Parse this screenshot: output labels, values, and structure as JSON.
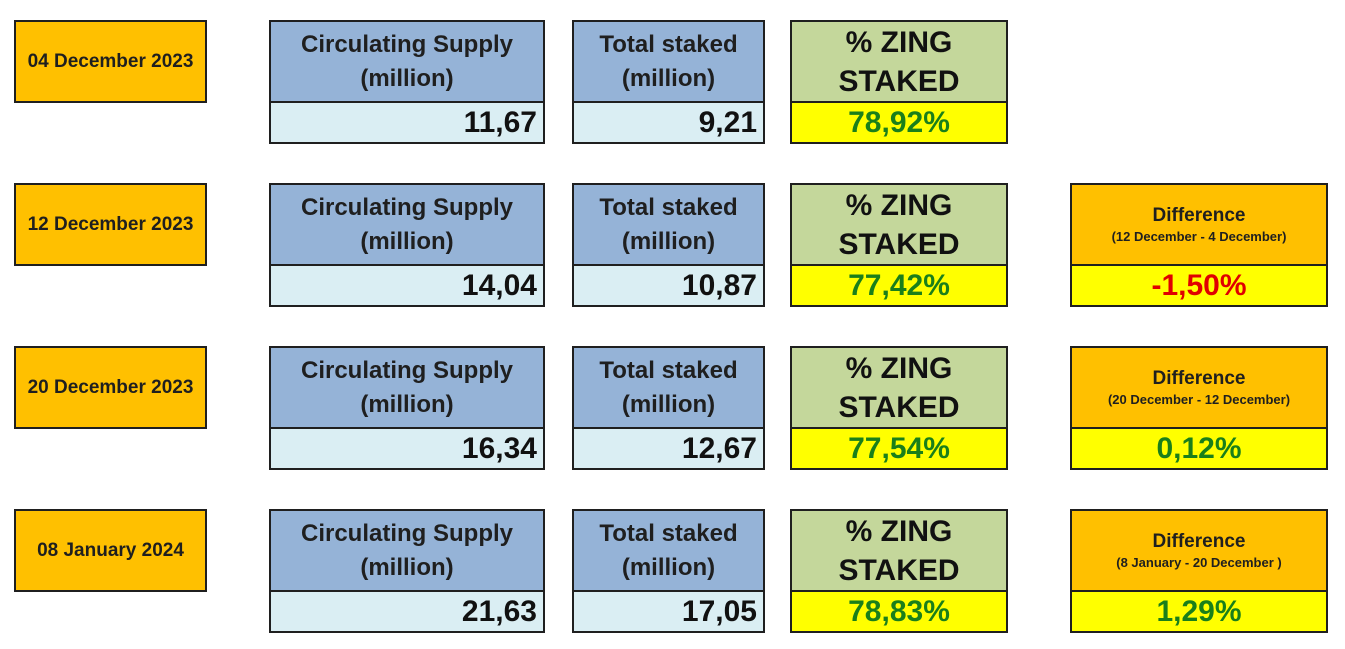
{
  "rows": [
    {
      "date": "04 December 2023",
      "supply_label_1": "Circulating Supply",
      "supply_label_2": "(million)",
      "supply": "11,67",
      "staked_label_1": "Total staked",
      "staked_label_2": "(million)",
      "staked": "9,21",
      "pct_label_1": "% ZING",
      "pct_label_2": "STAKED",
      "pct": "78,92%"
    },
    {
      "date": "12 December 2023",
      "supply_label_1": "Circulating Supply",
      "supply_label_2": "(million)",
      "supply": "14,04",
      "staked_label_1": "Total staked",
      "staked_label_2": "(million)",
      "staked": "10,87",
      "pct_label_1": "% ZING",
      "pct_label_2": "STAKED",
      "pct": "77,42%",
      "diff_label": "Difference",
      "diff_range": "(12 December - 4 December)",
      "diff": "-1,50%"
    },
    {
      "date": "20 December 2023",
      "supply_label_1": "Circulating Supply",
      "supply_label_2": "(million)",
      "supply": "16,34",
      "staked_label_1": "Total staked",
      "staked_label_2": "(million)",
      "staked": "12,67",
      "pct_label_1": "% ZING",
      "pct_label_2": "STAKED",
      "pct": "77,54%",
      "diff_label": "Difference",
      "diff_range": "(20 December - 12 December)",
      "diff": "0,12%"
    },
    {
      "date": "08 January 2024",
      "supply_label_1": "Circulating Supply",
      "supply_label_2": "(million)",
      "supply": "21,63",
      "staked_label_1": "Total staked",
      "staked_label_2": "(million)",
      "staked": "17,05",
      "pct_label_1": "% ZING",
      "pct_label_2": "STAKED",
      "pct": "78,83%",
      "diff_label": "Difference",
      "diff_range": "(8 January - 20 December )",
      "diff": "1,29%"
    }
  ],
  "colors": {
    "date_bg": "#ffc000",
    "header_bg": "#95b3d7",
    "zing_header_bg": "#c4d79b",
    "value_bg": "#daeef3",
    "pct_bg": "#ffff00",
    "positive_text": "#1a7f1a",
    "negative_text": "#e00000"
  }
}
